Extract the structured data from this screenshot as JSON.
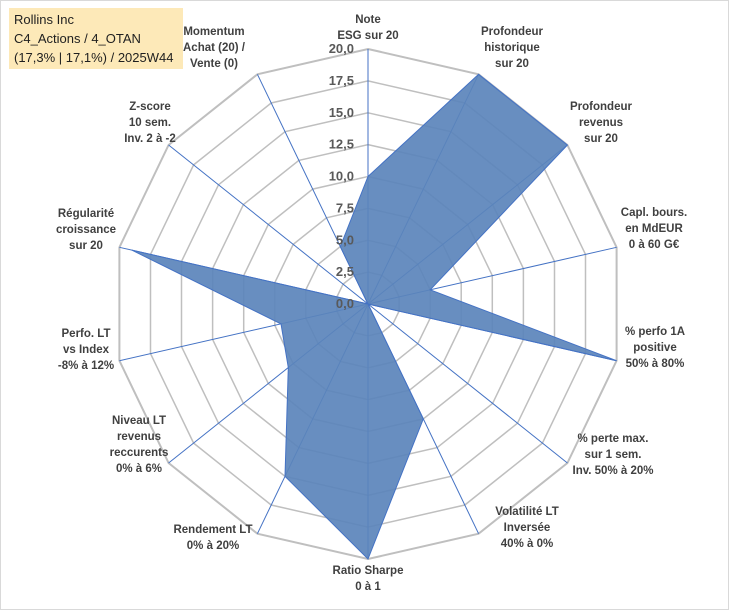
{
  "title_box": {
    "line1": "Rollins Inc",
    "line2": "C4_Actions / 4_OTAN",
    "line3": "(17,3% | 17,1%) / 2025W44"
  },
  "colors": {
    "fill": "#5b84bb",
    "stroke": "#4472c4",
    "grid": "#bfbfbf",
    "spoke": "#4472c4"
  },
  "chart_data": {
    "type": "radar",
    "rmin": 0,
    "rmax": 20,
    "ticks": [
      "0,0",
      "2,5",
      "5,0",
      "7,5",
      "10,0",
      "12,5",
      "15,0",
      "17,5",
      "20,0"
    ],
    "axes": [
      {
        "label": [
          "Note",
          "ESG sur 20"
        ],
        "value": 10
      },
      {
        "label": [
          "Profondeur",
          "historique",
          "sur 20"
        ],
        "value": 20
      },
      {
        "label": [
          "Profondeur",
          "revenus",
          "sur 20"
        ],
        "value": 20
      },
      {
        "label": [
          "Capl. bours.",
          "en MdEUR",
          "0 à 60 G€"
        ],
        "value": 5
      },
      {
        "label": [
          "% perfo 1A",
          "positive",
          "50% à 80%"
        ],
        "value": 20
      },
      {
        "label": [
          "% perte max.",
          "sur 1 sem.",
          "Inv. 50% à 20%"
        ],
        "value": 0
      },
      {
        "label": [
          "Volatilité LT",
          "Inversée",
          "40% à 0%"
        ],
        "value": 10
      },
      {
        "label": [
          "Ratio Sharpe",
          "0 à 1"
        ],
        "value": 20
      },
      {
        "label": [
          "Rendement LT",
          "0% à 20%"
        ],
        "value": 15
      },
      {
        "label": [
          "Niveau LT",
          "revenus",
          "reccurents",
          "0% à 6%"
        ],
        "value": 8
      },
      {
        "label": [
          "Perfo. LT",
          "vs Index",
          "-8% à 12%"
        ],
        "value": 7
      },
      {
        "label": [
          "Régularité",
          "croissance",
          "sur 20"
        ],
        "value": 19
      },
      {
        "label": [
          "Z-score",
          "10 sem.",
          "Inv. 2 à -2"
        ],
        "value": 0
      },
      {
        "label": [
          "Momentum",
          "Achat (20) /",
          "Vente (0)"
        ],
        "value": 5
      }
    ]
  }
}
